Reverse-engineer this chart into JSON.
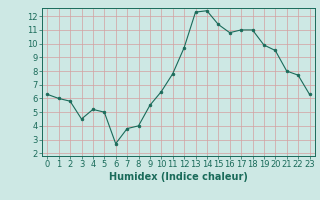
{
  "x": [
    0,
    1,
    2,
    3,
    4,
    5,
    6,
    7,
    8,
    9,
    10,
    11,
    12,
    13,
    14,
    15,
    16,
    17,
    18,
    19,
    20,
    21,
    22,
    23
  ],
  "y": [
    6.3,
    6.0,
    5.8,
    4.5,
    5.2,
    5.0,
    2.7,
    3.8,
    4.0,
    5.5,
    6.5,
    7.8,
    9.7,
    12.3,
    12.4,
    11.4,
    10.8,
    11.0,
    11.0,
    9.9,
    9.5,
    8.0,
    7.7,
    6.3
  ],
  "line_color": "#1a6b5a",
  "marker": "o",
  "marker_size": 2.0,
  "bg_color": "#cde8e4",
  "grid_color": "#d4a0a0",
  "xlabel": "Humidex (Indice chaleur)",
  "xlim": [
    -0.5,
    23.5
  ],
  "ylim": [
    1.8,
    12.6
  ],
  "yticks": [
    2,
    3,
    4,
    5,
    6,
    7,
    8,
    9,
    10,
    11,
    12
  ],
  "xticks": [
    0,
    1,
    2,
    3,
    4,
    5,
    6,
    7,
    8,
    9,
    10,
    11,
    12,
    13,
    14,
    15,
    16,
    17,
    18,
    19,
    20,
    21,
    22,
    23
  ],
  "tick_color": "#1a6b5a",
  "label_fontsize": 6.0,
  "xlabel_fontsize": 7.0,
  "axis_color": "#1a6b5a",
  "linewidth": 0.8
}
